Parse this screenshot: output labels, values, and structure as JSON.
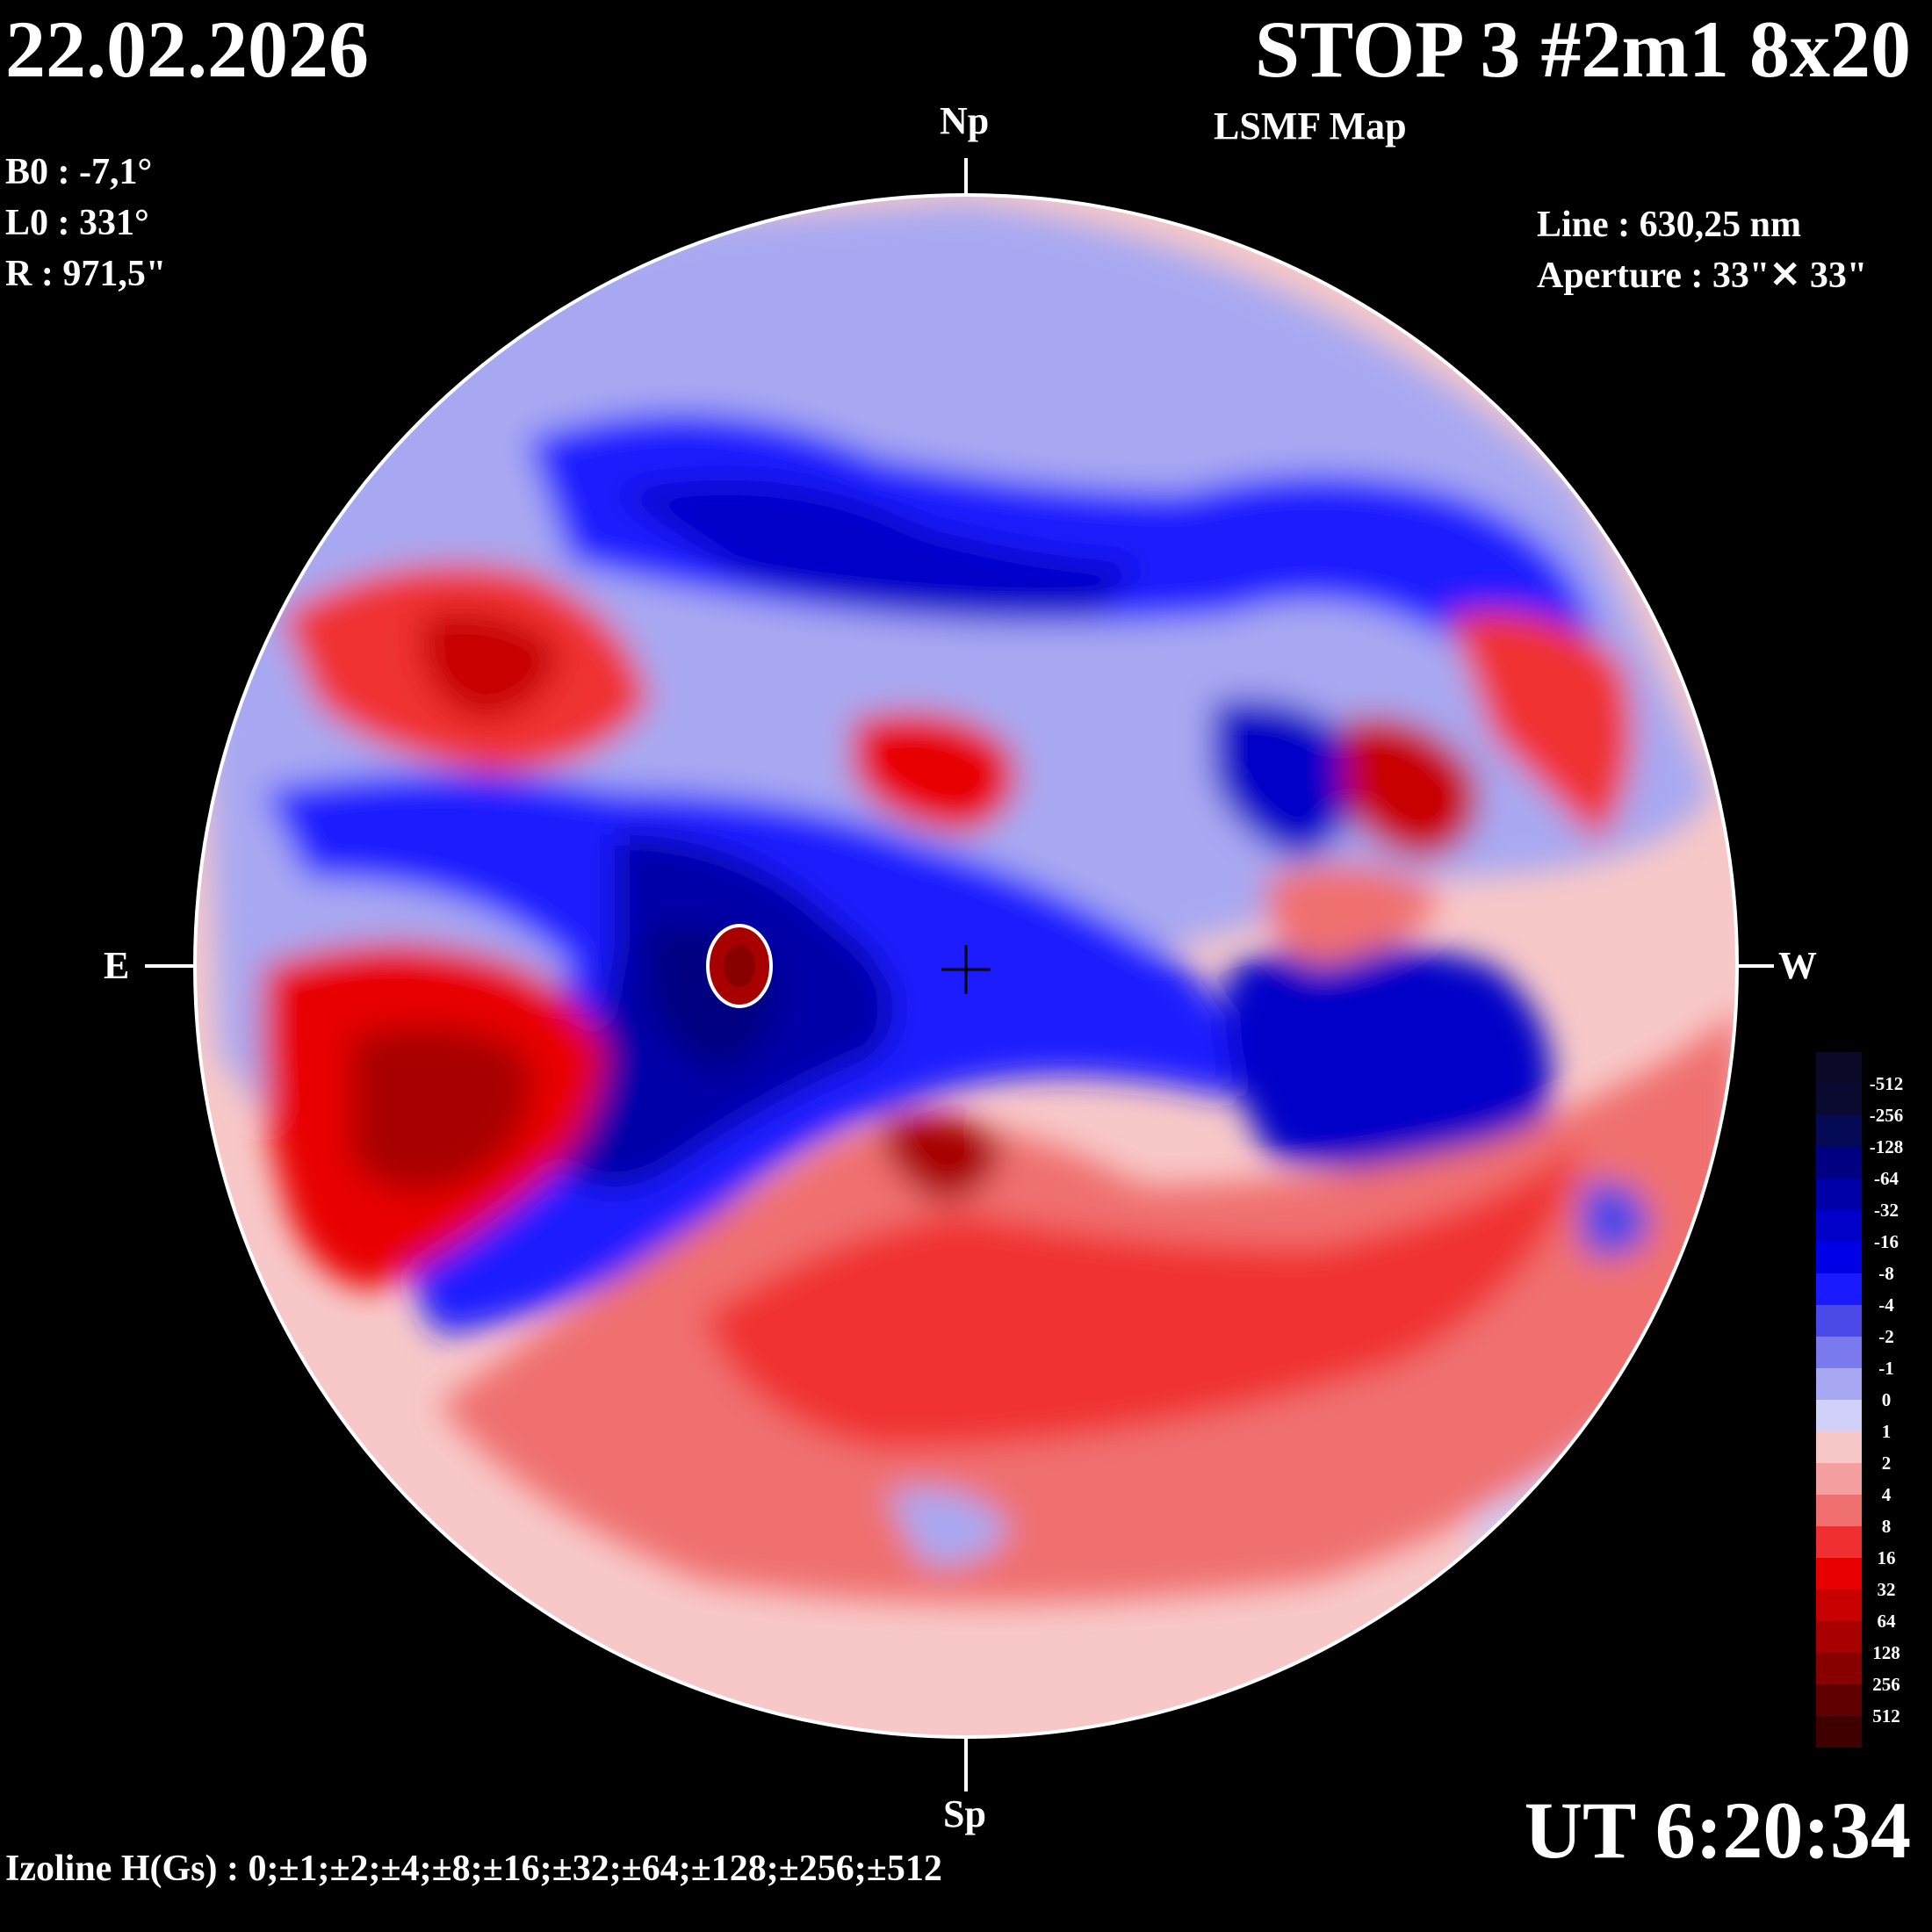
{
  "header": {
    "date": "22.02.2026",
    "title": "STOP 3 #2m1 8x20",
    "subtitle": "LSMF  Map",
    "ut": "UT 6:20:34"
  },
  "params": {
    "b0": "B0 : -7,1°",
    "l0": "L0 : 331°",
    "r": "R  : 971,5\"",
    "line": "Line :  630,25 nm",
    "aperture": "Aperture : 33\"✕ 33\""
  },
  "orientation": {
    "north": "Np",
    "south": "Sp",
    "east": "E",
    "west": "W"
  },
  "footer": {
    "izoline": "Izoline H(Gs) : 0;±1;±2;±4;±8;±16;±32;±64;±128;±256;±512"
  },
  "legend": {
    "levels": [
      {
        "label": "-512",
        "color": "#0a0a30"
      },
      {
        "label": "-256",
        "color": "#050a55"
      },
      {
        "label": "-128",
        "color": "#000080"
      },
      {
        "label": "-64",
        "color": "#0000a8"
      },
      {
        "label": "-32",
        "color": "#0000c8"
      },
      {
        "label": "-16",
        "color": "#0000e6"
      },
      {
        "label": "-8",
        "color": "#1a1aff"
      },
      {
        "label": "-4",
        "color": "#4a4ae8"
      },
      {
        "label": "-2",
        "color": "#7a7aee"
      },
      {
        "label": "-1",
        "color": "#a8a8f2"
      },
      {
        "label": "0",
        "color": "#d0d0f8"
      },
      {
        "label": "1",
        "color": "#f8c8c8"
      },
      {
        "label": "2",
        "color": "#f5a0a0"
      },
      {
        "label": "4",
        "color": "#f07070"
      },
      {
        "label": "8",
        "color": "#f03030"
      },
      {
        "label": "16",
        "color": "#e80000"
      },
      {
        "label": "32",
        "color": "#c80000"
      },
      {
        "label": "64",
        "color": "#a80000"
      },
      {
        "label": "128",
        "color": "#880000"
      },
      {
        "label": "256",
        "color": "#600000"
      },
      {
        "label": "512",
        "color": "#400000"
      }
    ]
  }
}
